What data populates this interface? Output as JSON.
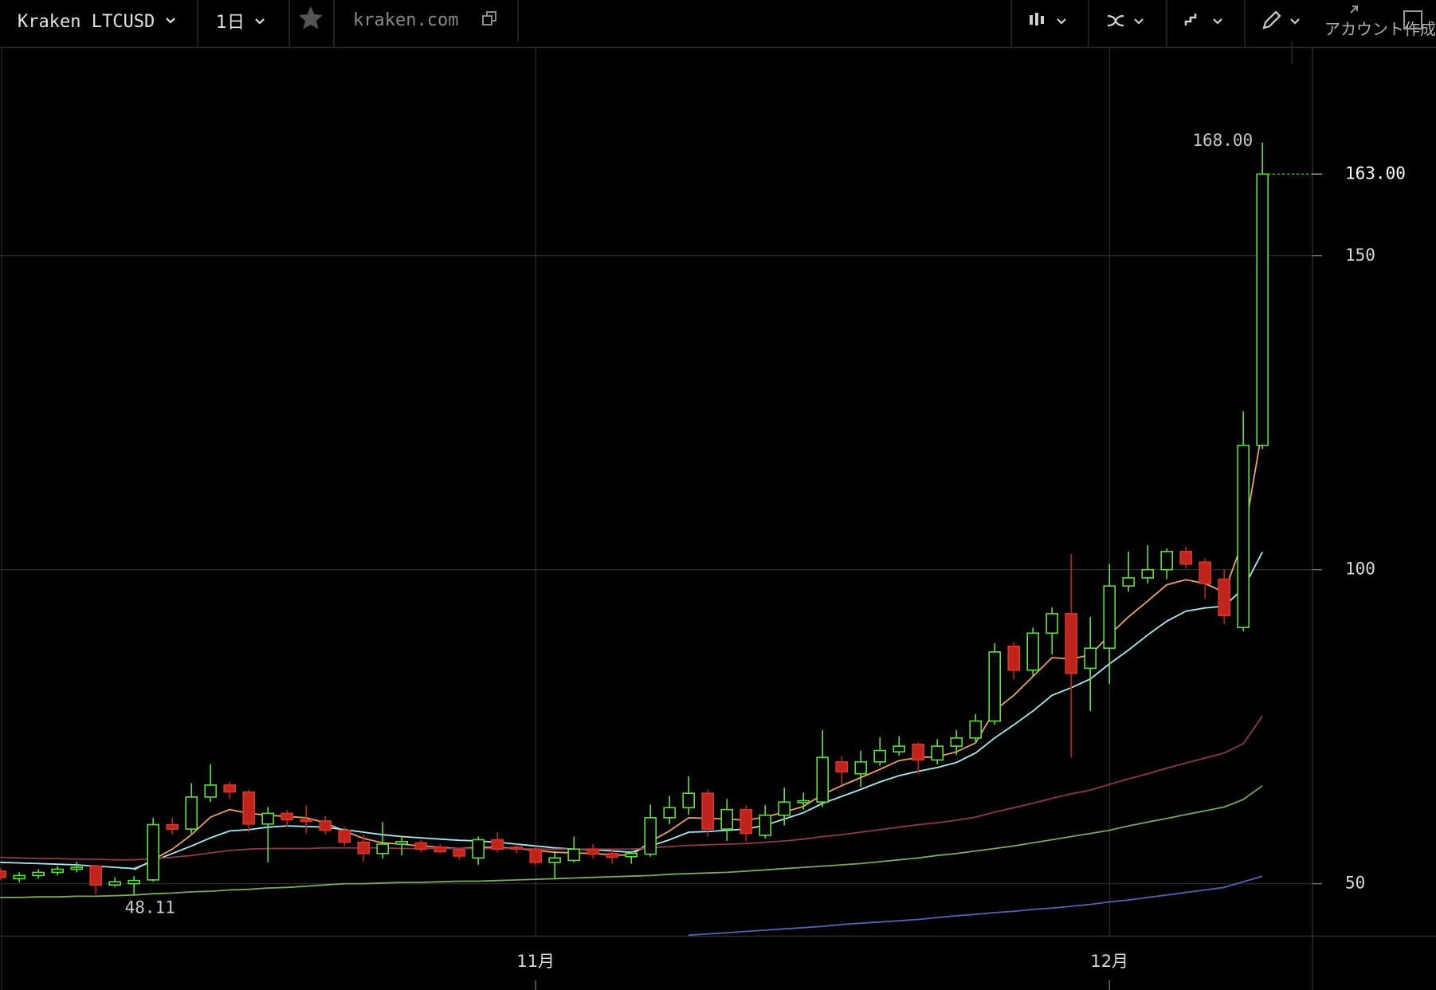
{
  "toolbar": {
    "symbol": "Kraken LTCUSD",
    "interval": "1日",
    "source": "kraken.com",
    "account": "アカウント作成"
  },
  "chart_data": {
    "type": "candlestick",
    "categories": [
      null,
      null,
      null,
      null,
      null,
      null,
      null,
      null,
      null,
      null,
      null,
      null,
      null,
      null,
      null,
      null,
      null,
      null,
      null,
      null,
      null,
      null,
      null,
      null,
      null,
      null,
      null,
      null,
      "11月",
      null,
      null,
      null,
      null,
      null,
      null,
      null,
      null,
      null,
      null,
      null,
      null,
      null,
      null,
      null,
      null,
      null,
      null,
      null,
      null,
      null,
      null,
      null,
      null,
      null,
      null,
      null,
      null,
      null,
      "12月",
      null,
      null,
      null,
      null,
      null,
      null,
      null,
      null
    ],
    "open": [
      52,
      50.8,
      51.3,
      51.8,
      52.3,
      52.8,
      49.8,
      50,
      50.6,
      59.4,
      58.7,
      63.8,
      65.7,
      64.6,
      59.5,
      61.2,
      60.2,
      60,
      58.5,
      56.6,
      54.8,
      56.3,
      56.5,
      55.8,
      55.4,
      54.1,
      57,
      55.8,
      55.5,
      53.4,
      53.7,
      55.5,
      54.8,
      54.3,
      54.7,
      60.5,
      62.1,
      64.4,
      58.7,
      61.8,
      57.7,
      60.9,
      62.9,
      63,
      69.4,
      67.5,
      69.4,
      71,
      72.2,
      69.7,
      71.9,
      73.2,
      75.9,
      87.8,
      84,
      89.9,
      93,
      84.3,
      87.5,
      97.4,
      98.7,
      100,
      102.9,
      101.2,
      98.5,
      90.8,
      119.8
    ],
    "high": [
      52.5,
      51.8,
      52.3,
      52.8,
      53.5,
      53,
      51,
      51.2,
      60.5,
      60.5,
      66,
      69,
      66.2,
      65,
      62.2,
      61.8,
      62.5,
      60.8,
      59,
      57.8,
      59.8,
      57.5,
      57,
      56.3,
      55.8,
      57.5,
      58.2,
      56.3,
      56,
      55.2,
      57.5,
      56.3,
      55.5,
      55.2,
      62.6,
      64,
      67.1,
      65,
      63.5,
      62.5,
      62.5,
      65.3,
      64.5,
      74.5,
      70.3,
      71.2,
      73.3,
      73.5,
      72.5,
      73,
      74.5,
      77,
      88.3,
      88.5,
      90.8,
      94,
      102.5,
      92.5,
      100.9,
      102.9,
      103.9,
      103.4,
      103.7,
      101.8,
      100,
      125.2,
      168
    ],
    "low": [
      50.5,
      50.2,
      50.8,
      51.3,
      51.8,
      48.3,
      49.5,
      48.11,
      50.3,
      57.8,
      58,
      63,
      63.5,
      58.2,
      53.4,
      59,
      58,
      57.8,
      56,
      53.5,
      54,
      54.5,
      55,
      54.8,
      53.8,
      53,
      55,
      54.8,
      53,
      50.7,
      53.4,
      54,
      53.2,
      53.2,
      54.3,
      59.5,
      61,
      57.5,
      56.8,
      56.8,
      57.2,
      59.3,
      61.8,
      62.2,
      65.7,
      65.4,
      68.8,
      70.4,
      67.5,
      69,
      70.5,
      72.3,
      75.3,
      82.5,
      83,
      86.5,
      70.1,
      77.5,
      81.8,
      96.5,
      97.8,
      98.5,
      100.2,
      95.4,
      91.3,
      90.2,
      119.2
    ],
    "close": [
      51,
      51.3,
      51.8,
      52.3,
      52.6,
      49.8,
      50.3,
      50.5,
      59.4,
      58.7,
      63.8,
      65.7,
      64.6,
      59.5,
      61.2,
      60.2,
      59.9,
      58.5,
      56.6,
      54.8,
      56.3,
      56.7,
      55.5,
      55.1,
      54.4,
      57,
      55.5,
      55.5,
      53.4,
      54.1,
      55.5,
      54.7,
      54.2,
      54.8,
      60.5,
      62.1,
      64.4,
      58.7,
      61.8,
      58,
      60.9,
      63,
      63.2,
      70.1,
      67.8,
      69.4,
      71.2,
      71.9,
      69.7,
      71.9,
      73.2,
      75.9,
      86.9,
      84,
      89.9,
      93,
      83.5,
      87.5,
      97.4,
      98.7,
      100,
      102.9,
      100.9,
      97.8,
      92.7,
      119.8,
      163
    ],
    "up_color": "#5ee03a",
    "down_color": "#c0251c",
    "lines": [
      {
        "color": "#e8a468",
        "values": [
          null,
          null,
          null,
          null,
          null,
          null,
          null,
          52.2,
          53.8,
          55.5,
          57.8,
          60.6,
          61.8,
          61.2,
          60.9,
          60.7,
          60.5,
          59.7,
          58.4,
          57.2,
          56.5,
          56.3,
          56.0,
          55.8,
          55.6,
          55.8,
          55.8,
          55.6,
          55.3,
          55.0,
          54.9,
          54.8,
          54.6,
          54.5,
          56.7,
          58.4,
          60.5,
          60.4,
          60.3,
          60.1,
          60.6,
          61.4,
          62.3,
          64.2,
          65.6,
          66.9,
          68.2,
          69.6,
          70.1,
          70.2,
          71.0,
          72.4,
          77.6,
          80.0,
          83.0,
          86.0,
          85.8,
          86.4,
          89.6,
          92.5,
          95.0,
          97.6,
          98.4,
          97.8,
          96.4,
          104.7,
          122.5
        ]
      },
      {
        "color": "#a8eaf4",
        "values": [
          53.4,
          53.3,
          53.2,
          53.1,
          53.0,
          52.8,
          52.6,
          52.4,
          53.6,
          54.8,
          56.0,
          57.3,
          58.4,
          58.6,
          59.0,
          59.2,
          59.1,
          59.0,
          58.6,
          58.2,
          57.8,
          57.5,
          57.3,
          57.1,
          56.9,
          56.8,
          56.6,
          56.3,
          56.0,
          55.7,
          55.5,
          55.4,
          55.2,
          55.0,
          56.0,
          57.0,
          58.2,
          58.3,
          58.5,
          58.7,
          59.3,
          60.3,
          61.3,
          62.8,
          63.9,
          65.0,
          66.2,
          67.2,
          67.9,
          68.5,
          69.3,
          70.8,
          73.2,
          75.3,
          77.5,
          80.0,
          81.2,
          82.6,
          85.0,
          87.2,
          89.6,
          91.8,
          93.4,
          93.9,
          94.2,
          97.0,
          102.8
        ]
      },
      {
        "color": "#8c3a4c",
        "values": [
          54.2,
          54.1,
          54.0,
          54.0,
          53.9,
          53.9,
          53.8,
          53.8,
          54.0,
          54.2,
          54.5,
          54.9,
          55.3,
          55.5,
          55.6,
          55.6,
          55.6,
          55.7,
          55.7,
          55.7,
          55.7,
          55.6,
          55.6,
          55.6,
          55.6,
          55.6,
          55.6,
          55.6,
          55.5,
          55.5,
          55.5,
          55.5,
          55.5,
          55.5,
          55.7,
          55.9,
          56.1,
          56.2,
          56.3,
          56.4,
          56.6,
          56.8,
          57.1,
          57.5,
          57.8,
          58.2,
          58.6,
          59.0,
          59.4,
          59.7,
          60.1,
          60.6,
          61.4,
          62.1,
          62.8,
          63.6,
          64.3,
          64.9,
          65.8,
          66.7,
          67.5,
          68.4,
          69.2,
          70.0,
          70.8,
          72.3,
          76.7
        ]
      },
      {
        "color": "#7aaa5e",
        "values": [
          47.8,
          47.8,
          47.9,
          47.9,
          48.0,
          48.0,
          48.1,
          48.2,
          48.4,
          48.5,
          48.7,
          48.8,
          49.0,
          49.1,
          49.3,
          49.4,
          49.6,
          49.8,
          50.0,
          50.0,
          50.1,
          50.2,
          50.2,
          50.3,
          50.4,
          50.4,
          50.5,
          50.6,
          50.7,
          50.8,
          50.9,
          51.0,
          51.1,
          51.2,
          51.3,
          51.5,
          51.6,
          51.7,
          51.8,
          52.0,
          52.2,
          52.4,
          52.6,
          52.8,
          53.0,
          53.2,
          53.5,
          53.8,
          54.1,
          54.5,
          54.8,
          55.2,
          55.6,
          56.0,
          56.5,
          57.0,
          57.5,
          58.0,
          58.5,
          59.2,
          59.8,
          60.4,
          61.0,
          61.6,
          62.2,
          63.4,
          65.6
        ]
      },
      {
        "color": "#5462b4",
        "values": [
          null,
          null,
          null,
          null,
          null,
          null,
          null,
          null,
          null,
          null,
          null,
          null,
          null,
          null,
          null,
          null,
          null,
          null,
          null,
          null,
          null,
          null,
          null,
          null,
          null,
          null,
          null,
          null,
          null,
          null,
          null,
          null,
          null,
          null,
          null,
          null,
          41.8,
          42.0,
          42.2,
          42.4,
          42.6,
          42.8,
          43.0,
          43.2,
          43.5,
          43.7,
          43.9,
          44.1,
          44.3,
          44.6,
          44.9,
          45.1,
          45.4,
          45.6,
          45.9,
          46.1,
          46.4,
          46.7,
          47.1,
          47.4,
          47.8,
          48.2,
          48.6,
          49.0,
          49.4,
          50.3,
          51.2
        ]
      }
    ],
    "ylim": [
      41.7,
      183.1
    ],
    "yticks": [
      50,
      100,
      150
    ],
    "grid": true,
    "annotations": {
      "max": {
        "value": 168,
        "label": "168.00"
      },
      "min": {
        "value": 48.11,
        "label": "48.11"
      },
      "last": {
        "value": 163,
        "label": "163.00"
      }
    }
  }
}
